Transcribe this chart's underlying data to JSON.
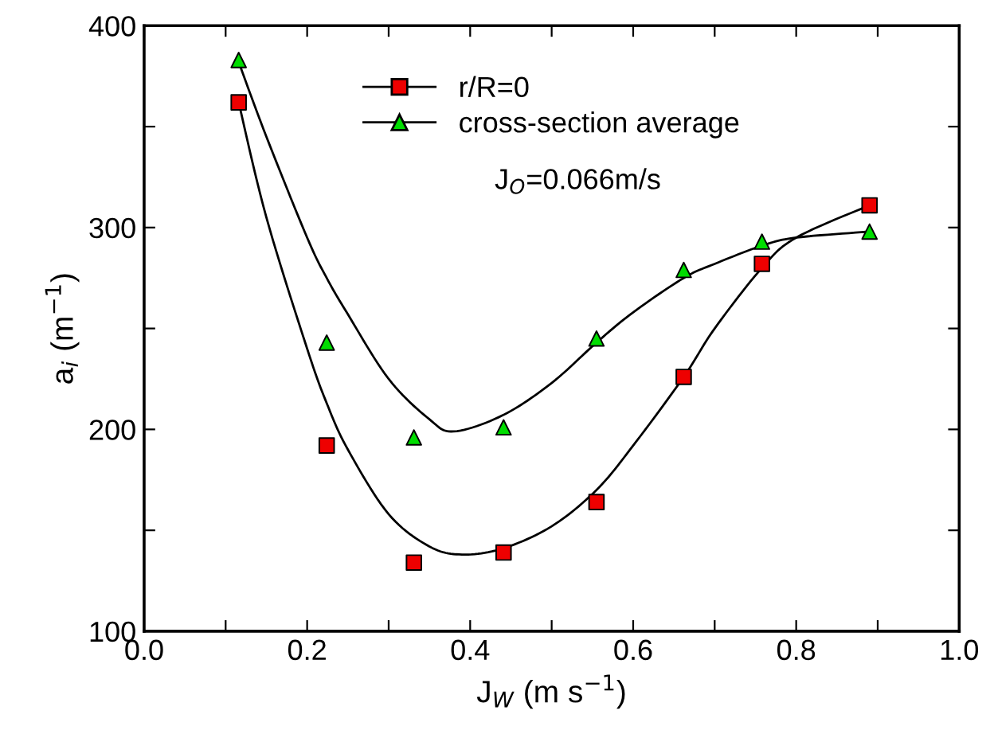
{
  "chart_data": {
    "type": "scatter",
    "xlabel": "J$_{W}$ (m s$^{−1}$)",
    "ylabel": "a$_{i}$ (m$^{−1}$)",
    "series": [
      {
        "name": "r/R=0",
        "marker": "square",
        "color": "#ee0000",
        "x": [
          0.116,
          0.224,
          0.331,
          0.441,
          0.555,
          0.662,
          0.758,
          0.89
        ],
        "values": [
          362,
          192,
          134,
          139,
          164,
          226,
          282,
          311
        ]
      },
      {
        "name": "cross-section average",
        "marker": "triangle",
        "color": "#00dd00",
        "x": [
          0.116,
          0.224,
          0.331,
          0.441,
          0.555,
          0.662,
          0.758,
          0.89
        ],
        "values": [
          383,
          243,
          196,
          201,
          245,
          279,
          293,
          298
        ]
      },
      {
        "type": "line",
        "color": "#000000",
        "x": [
          0.116,
          0.15,
          0.2,
          0.224,
          0.25,
          0.3,
          0.35,
          0.39,
          0.44,
          0.5,
          0.555,
          0.6,
          0.662,
          0.7,
          0.758,
          0.8,
          0.89
        ],
        "values": [
          362,
          305,
          240,
          213,
          190,
          158,
          142,
          138,
          141,
          152,
          170,
          192,
          226,
          250,
          280,
          295,
          311
        ]
      },
      {
        "type": "line",
        "color": "#000000",
        "x": [
          0.116,
          0.15,
          0.2,
          0.224,
          0.25,
          0.3,
          0.35,
          0.38,
          0.44,
          0.5,
          0.555,
          0.6,
          0.662,
          0.7,
          0.758,
          0.8,
          0.89
        ],
        "values": [
          382,
          345,
          295,
          275,
          257,
          225,
          205,
          199,
          207,
          223,
          243,
          258,
          275,
          282,
          291,
          295,
          298
        ]
      }
    ],
    "annotations": [
      "J$_{O}$=0.066m/s"
    ],
    "xlim": [
      0.0,
      1.0
    ],
    "ylim": [
      100,
      400
    ],
    "xticks": [
      {
        "value": 0.0,
        "label": "0.0"
      },
      {
        "value": 0.1,
        "label": null
      },
      {
        "value": 0.2,
        "label": "0.2"
      },
      {
        "value": 0.3,
        "label": null
      },
      {
        "value": 0.4,
        "label": "0.4"
      },
      {
        "value": 0.5,
        "label": null
      },
      {
        "value": 0.6,
        "label": "0.6"
      },
      {
        "value": 0.7,
        "label": null
      },
      {
        "value": 0.8,
        "label": "0.8"
      },
      {
        "value": 0.9,
        "label": null
      },
      {
        "value": 1.0,
        "label": "1.0"
      }
    ],
    "yticks": [
      100,
      {
        "value": 150,
        "label": null
      },
      200,
      {
        "value": 250,
        "label": null
      },
      300,
      {
        "value": 350,
        "label": null
      },
      400
    ],
    "grid": false,
    "legend": "top center"
  }
}
